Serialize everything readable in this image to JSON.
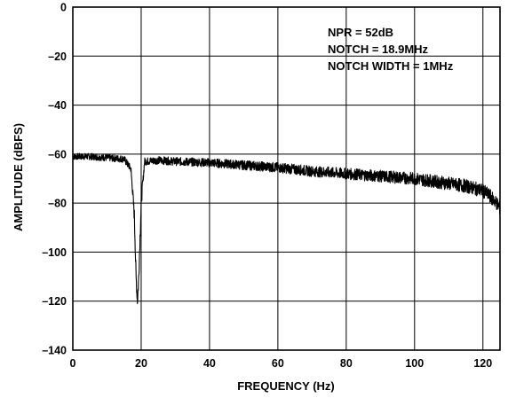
{
  "chart_data": {
    "type": "line",
    "title": "",
    "xlabel": "FREQUENCY (Hz)",
    "ylabel": "AMPLITUDE (dBFS)",
    "xlim": [
      0,
      125
    ],
    "ylim": [
      -140,
      0
    ],
    "x_ticks": [
      0,
      20,
      40,
      60,
      80,
      100,
      120
    ],
    "x_tick_labels": [
      "0",
      "20",
      "40",
      "60",
      "80",
      "100",
      "120"
    ],
    "y_ticks": [
      0,
      -20,
      -40,
      -60,
      -80,
      -100,
      -120,
      -140
    ],
    "y_tick_labels": [
      "0",
      "–20",
      "–40",
      "–60",
      "–80",
      "–100",
      "–120",
      "–140"
    ],
    "grid": true,
    "line_color": "#000000",
    "annotations": [
      "NPR = 52dB",
      "NOTCH = 18.9MHz",
      "NOTCH WIDTH = 1MHz"
    ],
    "series": [
      {
        "x": [
          0,
          5,
          10,
          15,
          17,
          18,
          18.5,
          18.9,
          19.3,
          20,
          21,
          25,
          30,
          40,
          50,
          60,
          70,
          80,
          90,
          100,
          110,
          115,
          120,
          122,
          124,
          125
        ],
        "y": [
          -61,
          -61,
          -61.5,
          -62,
          -66,
          -85,
          -110,
          -120,
          -110,
          -80,
          -63,
          -62.5,
          -63,
          -63.5,
          -64.5,
          -65.5,
          -67,
          -68,
          -69,
          -70,
          -72,
          -73,
          -75,
          -77,
          -80,
          -82
        ]
      }
    ]
  }
}
